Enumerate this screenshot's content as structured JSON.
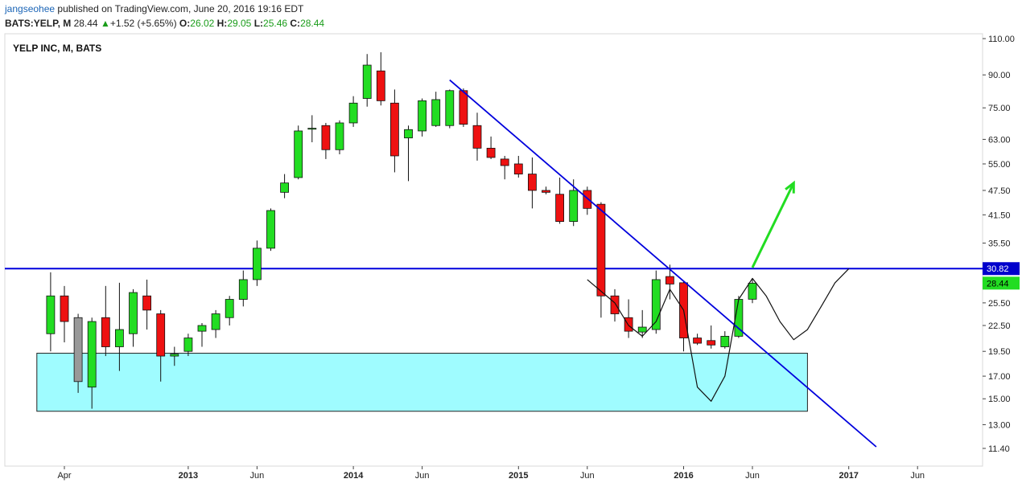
{
  "header": {
    "author": "jangseohee",
    "published_text": " published on TradingView.com, June 20, 2016 19:16 EDT",
    "symbol_line": "BATS:YELP, M",
    "last_price": "28.44",
    "change_arrow": "▲",
    "change_text": "+1.52 (+5.65%)",
    "open_label": "O:",
    "open_value": "26.02",
    "high_label": "H:",
    "high_value": "29.05",
    "low_label": "L:",
    "low_value": "25.46",
    "close_label": "C:",
    "close_value": "28.44"
  },
  "chart_title": "YELP INC, M, BATS",
  "colors": {
    "up": "#22dd22",
    "down": "#ee1111",
    "down_grey": "#999999",
    "trend_line": "#0000dd",
    "zone_fill": "#9ffcff",
    "arrow": "#22dd22",
    "price_tag_blue": "#0000cc",
    "price_tag_green": "#22dd22"
  },
  "chart_data": {
    "type": "candlestick",
    "title": "YELP INC, M, BATS",
    "y_scale": "log",
    "y_ticks": [
      "110.00",
      "90.00",
      "75.00",
      "63.00",
      "55.00",
      "47.50",
      "41.50",
      "35.50",
      "30.82",
      "28.44",
      "25.50",
      "22.50",
      "19.50",
      "17.00",
      "15.00",
      "13.00",
      "11.40"
    ],
    "y_tick_values": [
      110,
      90,
      75,
      63,
      55,
      47.5,
      41.5,
      35.5,
      30.82,
      28.44,
      25.5,
      22.5,
      19.5,
      17,
      15,
      13,
      11.4
    ],
    "x_ticks": [
      "Apr",
      "2013",
      "Jun",
      "2014",
      "Jun",
      "2015",
      "Jun",
      "2016",
      "Jun",
      "2017",
      "Jun"
    ],
    "x_tick_dates": [
      "2012-04",
      "2013-01",
      "2013-06",
      "2014-01",
      "2014-06",
      "2015-01",
      "2015-06",
      "2016-01",
      "2016-06",
      "2017-01",
      "2017-06"
    ],
    "candles": [
      {
        "date": "2012-03",
        "o": 21.5,
        "h": 30.2,
        "l": 19.5,
        "c": 26.5,
        "color": "up"
      },
      {
        "date": "2012-04",
        "o": 26.5,
        "h": 28.0,
        "l": 20.5,
        "c": 23.0,
        "color": "down"
      },
      {
        "date": "2012-05",
        "o": 23.5,
        "h": 24.0,
        "l": 15.5,
        "c": 16.5,
        "color": "down_grey"
      },
      {
        "date": "2012-06",
        "o": 16.0,
        "h": 23.5,
        "l": 14.2,
        "c": 23.0,
        "color": "up"
      },
      {
        "date": "2012-07",
        "o": 23.5,
        "h": 28.0,
        "l": 19.0,
        "c": 20.0,
        "color": "down"
      },
      {
        "date": "2012-08",
        "o": 20.0,
        "h": 28.5,
        "l": 17.5,
        "c": 22.0,
        "color": "up"
      },
      {
        "date": "2012-09",
        "o": 21.5,
        "h": 27.5,
        "l": 20.0,
        "c": 27.0,
        "color": "up"
      },
      {
        "date": "2012-10",
        "o": 26.5,
        "h": 29.0,
        "l": 22.0,
        "c": 24.5,
        "color": "down"
      },
      {
        "date": "2012-11",
        "o": 24.0,
        "h": 24.5,
        "l": 16.5,
        "c": 19.0,
        "color": "down"
      },
      {
        "date": "2012-12",
        "o": 19.0,
        "h": 20.0,
        "l": 18.0,
        "c": 19.2,
        "color": "up"
      },
      {
        "date": "2013-01",
        "o": 19.5,
        "h": 21.5,
        "l": 19.0,
        "c": 21.0,
        "color": "up"
      },
      {
        "date": "2013-02",
        "o": 21.8,
        "h": 22.8,
        "l": 20.0,
        "c": 22.5,
        "color": "up"
      },
      {
        "date": "2013-03",
        "o": 22.0,
        "h": 24.5,
        "l": 21.0,
        "c": 24.0,
        "color": "up"
      },
      {
        "date": "2013-04",
        "o": 23.5,
        "h": 26.5,
        "l": 22.5,
        "c": 26.0,
        "color": "up"
      },
      {
        "date": "2013-05",
        "o": 26.0,
        "h": 30.5,
        "l": 25.0,
        "c": 29.0,
        "color": "up"
      },
      {
        "date": "2013-06",
        "o": 29.0,
        "h": 36.0,
        "l": 28.0,
        "c": 34.5,
        "color": "up"
      },
      {
        "date": "2013-07",
        "o": 34.5,
        "h": 43.0,
        "l": 34.0,
        "c": 42.5,
        "color": "up"
      },
      {
        "date": "2013-08",
        "o": 47.0,
        "h": 52.0,
        "l": 45.5,
        "c": 49.5,
        "color": "up"
      },
      {
        "date": "2013-09",
        "o": 51.0,
        "h": 68.0,
        "l": 50.5,
        "c": 66.0,
        "color": "up"
      },
      {
        "date": "2013-10",
        "o": 67.0,
        "h": 72.0,
        "l": 62.0,
        "c": 67.0,
        "color": "up"
      },
      {
        "date": "2013-11",
        "o": 68.0,
        "h": 69.0,
        "l": 56.5,
        "c": 59.5,
        "color": "down"
      },
      {
        "date": "2013-12",
        "o": 59.5,
        "h": 70.0,
        "l": 58.0,
        "c": 69.0,
        "color": "up"
      },
      {
        "date": "2014-01",
        "o": 69.0,
        "h": 80.0,
        "l": 67.5,
        "c": 77.0,
        "color": "up"
      },
      {
        "date": "2014-02",
        "o": 79.0,
        "h": 101.0,
        "l": 75.5,
        "c": 95.0,
        "color": "up"
      },
      {
        "date": "2014-03",
        "o": 92.0,
        "h": 102.0,
        "l": 76.0,
        "c": 78.0,
        "color": "down"
      },
      {
        "date": "2014-04",
        "o": 77.0,
        "h": 83.0,
        "l": 52.5,
        "c": 57.5,
        "color": "down"
      },
      {
        "date": "2014-05",
        "o": 63.5,
        "h": 68.0,
        "l": 50.0,
        "c": 66.5,
        "color": "up"
      },
      {
        "date": "2014-06",
        "o": 66.0,
        "h": 79.0,
        "l": 64.0,
        "c": 78.0,
        "color": "up"
      },
      {
        "date": "2014-07",
        "o": 68.0,
        "h": 82.0,
        "l": 67.5,
        "c": 78.5,
        "color": "up"
      },
      {
        "date": "2014-08",
        "o": 68.0,
        "h": 83.0,
        "l": 67.0,
        "c": 82.5,
        "color": "up"
      },
      {
        "date": "2014-09",
        "o": 82.5,
        "h": 83.5,
        "l": 67.5,
        "c": 68.5,
        "color": "down"
      },
      {
        "date": "2014-10",
        "o": 68.0,
        "h": 73.0,
        "l": 56.0,
        "c": 60.0,
        "color": "down"
      },
      {
        "date": "2014-11",
        "o": 60.0,
        "h": 64.0,
        "l": 56.5,
        "c": 57.0,
        "color": "down"
      },
      {
        "date": "2014-12",
        "o": 56.5,
        "h": 57.5,
        "l": 50.5,
        "c": 54.5,
        "color": "down"
      },
      {
        "date": "2015-01",
        "o": 55.0,
        "h": 57.5,
        "l": 51.0,
        "c": 52.0,
        "color": "down"
      },
      {
        "date": "2015-02",
        "o": 52.0,
        "h": 57.0,
        "l": 43.0,
        "c": 47.5,
        "color": "down"
      },
      {
        "date": "2015-03",
        "o": 47.5,
        "h": 48.5,
        "l": 46.5,
        "c": 47.0,
        "color": "down"
      },
      {
        "date": "2015-04",
        "o": 46.5,
        "h": 51.0,
        "l": 39.5,
        "c": 40.0,
        "color": "down"
      },
      {
        "date": "2015-05",
        "o": 40.0,
        "h": 50.5,
        "l": 39.0,
        "c": 47.5,
        "color": "up"
      },
      {
        "date": "2015-06",
        "o": 47.5,
        "h": 48.5,
        "l": 41.5,
        "c": 43.0,
        "color": "down"
      },
      {
        "date": "2015-07",
        "o": 44.0,
        "h": 44.5,
        "l": 23.5,
        "c": 26.5,
        "color": "down"
      },
      {
        "date": "2015-08",
        "o": 26.5,
        "h": 27.5,
        "l": 23.0,
        "c": 24.0,
        "color": "down"
      },
      {
        "date": "2015-09",
        "o": 23.5,
        "h": 26.0,
        "l": 21.0,
        "c": 21.8,
        "color": "down"
      },
      {
        "date": "2015-10",
        "o": 21.7,
        "h": 24.5,
        "l": 21.0,
        "c": 22.3,
        "color": "up"
      },
      {
        "date": "2015-11",
        "o": 22.0,
        "h": 30.5,
        "l": 21.5,
        "c": 29.0,
        "color": "up"
      },
      {
        "date": "2015-12",
        "o": 29.5,
        "h": 31.5,
        "l": 26.0,
        "c": 28.3,
        "color": "down"
      },
      {
        "date": "2016-01",
        "o": 28.5,
        "h": 28.8,
        "l": 19.5,
        "c": 21.0,
        "color": "down"
      },
      {
        "date": "2016-02",
        "o": 21.0,
        "h": 21.5,
        "l": 20.2,
        "c": 20.4,
        "color": "down"
      },
      {
        "date": "2016-03",
        "o": 20.7,
        "h": 22.5,
        "l": 19.8,
        "c": 20.2,
        "color": "down"
      },
      {
        "date": "2016-04",
        "o": 20.0,
        "h": 21.8,
        "l": 19.8,
        "c": 21.2,
        "color": "up"
      },
      {
        "date": "2016-05",
        "o": 21.2,
        "h": 26.5,
        "l": 21.0,
        "c": 26.0,
        "color": "up"
      },
      {
        "date": "2016-06",
        "o": 26.02,
        "h": 29.05,
        "l": 25.46,
        "c": 28.44,
        "color": "up"
      }
    ],
    "horizontal_line": 30.82,
    "last_price": 28.44,
    "support_zone": {
      "from_date": "2012-02",
      "to_date": "2016-10",
      "low": 14.0,
      "high": 19.3
    },
    "trend_line": {
      "from_date": "2014-08",
      "from_price": 87.5,
      "to_date": "2017-03",
      "to_price": 11.5
    },
    "arrow": {
      "from_date": "2016-06",
      "from_price": 31.0,
      "to_date": "2016-09",
      "to_price": 49.5
    }
  }
}
